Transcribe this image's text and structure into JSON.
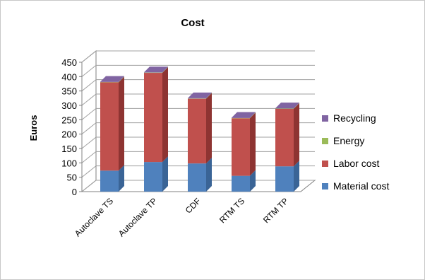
{
  "chart_data": {
    "type": "bar",
    "stacked": true,
    "three_d": true,
    "title": "Cost",
    "xlabel": "",
    "ylabel": "Euros",
    "ylim": [
      0,
      450
    ],
    "yticks": [
      "0",
      "50",
      "100",
      "150",
      "200",
      "250",
      "300",
      "350",
      "400",
      "450"
    ],
    "grid": true,
    "legend_position": "right",
    "categories": [
      "Autoclave TS",
      "Autoclave TP",
      "CDF",
      "RTM TS",
      "RTM TP"
    ],
    "series": [
      {
        "name": "Material cost",
        "color": "#4f81bd",
        "side": "#3a6496",
        "values": [
          73,
          103,
          98,
          55,
          88
        ]
      },
      {
        "name": "Labor cost",
        "color": "#c0504d",
        "side": "#8e3432",
        "values": [
          307,
          310,
          225,
          200,
          200
        ]
      },
      {
        "name": "Energy",
        "color": "#9bbb59",
        "side": "#76923c",
        "values": [
          1,
          1,
          1,
          1,
          1
        ]
      },
      {
        "name": "Recycling",
        "color": "#8064a2",
        "side": "#5f4a7a",
        "values": [
          1,
          1,
          1,
          1,
          1
        ]
      }
    ],
    "legend_order": [
      "Recycling",
      "Energy",
      "Labor cost",
      "Material cost"
    ]
  }
}
